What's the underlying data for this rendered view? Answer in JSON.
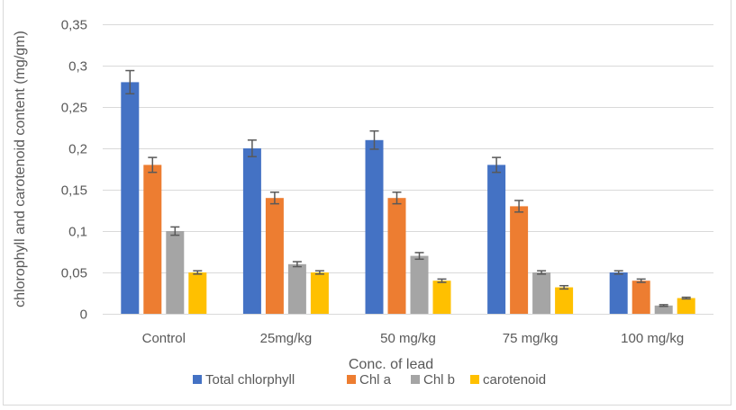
{
  "chart_data": {
    "type": "bar",
    "title": "",
    "xlabel": "Conc. of lead",
    "ylabel": "chlorophyll and carotenoid content (mg/gm)",
    "ylim": [
      0,
      0.35
    ],
    "yticks": [
      0,
      0.05,
      0.1,
      0.15,
      0.2,
      0.25,
      0.3,
      0.35
    ],
    "ytick_labels": [
      "0",
      "0,05",
      "0,1",
      "0,15",
      "0,2",
      "0,25",
      "0,3",
      "0,35"
    ],
    "grid": true,
    "legend_position": "bottom",
    "categories": [
      "Control",
      "25mg/kg",
      "50 mg/kg",
      "75 mg/kg",
      "100 mg/kg"
    ],
    "series": [
      {
        "name": "Total chlorphyll",
        "color": "#4472c4",
        "values": [
          0.28,
          0.2,
          0.21,
          0.18,
          0.05
        ],
        "errors": [
          0.014,
          0.01,
          0.011,
          0.009,
          0.002
        ]
      },
      {
        "name": "Chl a",
        "color": "#ed7d31",
        "values": [
          0.18,
          0.14,
          0.14,
          0.13,
          0.04
        ],
        "errors": [
          0.009,
          0.007,
          0.007,
          0.007,
          0.002
        ]
      },
      {
        "name": "Chl b",
        "color": "#a5a5a5",
        "values": [
          0.1,
          0.06,
          0.07,
          0.05,
          0.01
        ],
        "errors": [
          0.005,
          0.003,
          0.004,
          0.002,
          0.001
        ]
      },
      {
        "name": "carotenoid",
        "color": "#ffc000",
        "values": [
          0.05,
          0.05,
          0.04,
          0.032,
          0.019
        ],
        "errors": [
          0.002,
          0.002,
          0.002,
          0.002,
          0.001
        ]
      }
    ]
  }
}
